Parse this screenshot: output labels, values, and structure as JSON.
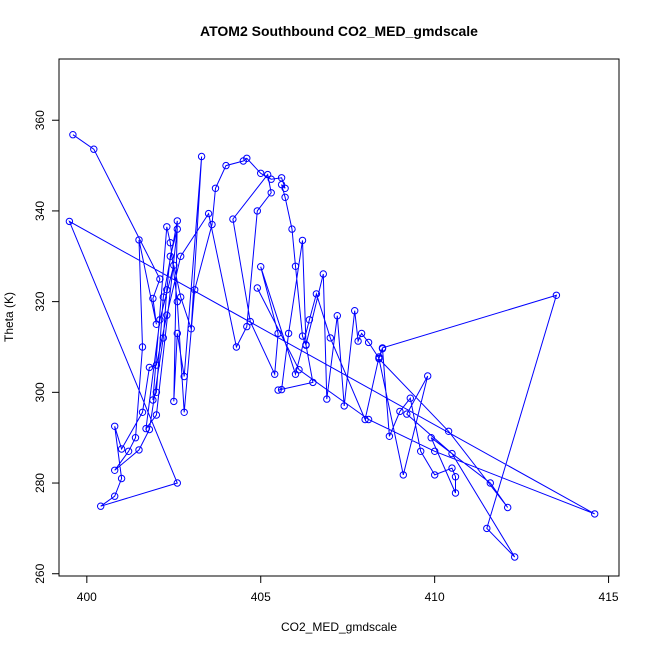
{
  "chart_data": {
    "type": "line",
    "title": "ATOM2 Southbound CO2_MED_gmdscale",
    "xlabel": "CO2_MED_gmdscale",
    "ylabel": "Theta (K)",
    "xlim": [
      399.2,
      415.3
    ],
    "ylim": [
      259.5,
      373.5
    ],
    "xticks": [
      400,
      405,
      410,
      415
    ],
    "yticks": [
      260,
      280,
      300,
      320,
      340,
      360
    ],
    "grid": false,
    "markers": "open-circle",
    "color": "#0000ff",
    "series": [
      {
        "points": [
          [
            399.6,
            356.8
          ],
          [
            400.2,
            353.6
          ],
          [
            402.1,
            325.0
          ],
          [
            401.9,
            320.7
          ],
          [
            402.0,
            315.0
          ],
          [
            401.5,
            333.6
          ],
          [
            401.6,
            310.0
          ],
          [
            401.4,
            290.0
          ],
          [
            401.2,
            287.0
          ],
          [
            400.8,
            282.8
          ],
          [
            401.5,
            287.3
          ],
          [
            401.8,
            291.8
          ],
          [
            402.2,
            312.0
          ],
          [
            402.3,
            322.6
          ],
          [
            402.4,
            330.0
          ],
          [
            402.6,
            336.0
          ],
          [
            402.0,
            295.0
          ],
          [
            401.7,
            292.0
          ],
          [
            402.1,
            316.0
          ],
          [
            402.5,
            328.0
          ],
          [
            402.7,
            321.0
          ],
          [
            403.0,
            314.0
          ],
          [
            403.3,
            352.0
          ],
          [
            402.8,
            303.5
          ],
          [
            402.6,
            313.0
          ],
          [
            402.5,
            298.0
          ],
          [
            402.6,
            337.8
          ],
          [
            402.2,
            321.0
          ],
          [
            402.0,
            300.0
          ],
          [
            401.9,
            298.3
          ],
          [
            402.3,
            336.5
          ],
          [
            402.4,
            333.0
          ],
          [
            402.6,
            320.0
          ],
          [
            402.8,
            295.6
          ],
          [
            403.1,
            322.6
          ],
          [
            403.6,
            337.0
          ],
          [
            403.7,
            345.0
          ],
          [
            404.0,
            350.0
          ],
          [
            404.5,
            351.0
          ],
          [
            404.6,
            351.6
          ],
          [
            405.0,
            348.3
          ],
          [
            405.3,
            347.0
          ],
          [
            405.6,
            347.3
          ],
          [
            405.7,
            345.0
          ],
          [
            405.6,
            345.8
          ],
          [
            405.7,
            343.0
          ],
          [
            405.9,
            336.0
          ],
          [
            406.0,
            327.8
          ],
          [
            406.2,
            312.4
          ],
          [
            406.3,
            310.4
          ],
          [
            406.5,
            302.2
          ],
          [
            405.5,
            300.5
          ],
          [
            405.6,
            300.6
          ],
          [
            405.8,
            313.0
          ],
          [
            406.2,
            333.5
          ],
          [
            406.3,
            310.5
          ],
          [
            406.8,
            326.1
          ],
          [
            406.9,
            298.5
          ],
          [
            407.2,
            316.9
          ],
          [
            407.4,
            297.0
          ],
          [
            407.7,
            318.0
          ],
          [
            407.8,
            311.3
          ],
          [
            407.9,
            313.0
          ],
          [
            408.1,
            311.0
          ],
          [
            408.4,
            307.5
          ],
          [
            408.5,
            309.6
          ],
          [
            408.7,
            290.3
          ],
          [
            409.0,
            295.8
          ],
          [
            409.3,
            298.7
          ],
          [
            409.6,
            287.0
          ],
          [
            410.0,
            281.8
          ],
          [
            410.5,
            283.3
          ],
          [
            410.6,
            281.4
          ],
          [
            410.6,
            277.8
          ],
          [
            409.9,
            290.0
          ],
          [
            411.6,
            280.0
          ],
          [
            412.1,
            274.6
          ],
          [
            410.4,
            291.4
          ],
          [
            408.4,
            307.4
          ],
          [
            409.1,
            281.8
          ],
          [
            409.8,
            303.6
          ],
          [
            409.2,
            295.2
          ],
          [
            410.5,
            286.5
          ],
          [
            412.3,
            263.7
          ],
          [
            411.5,
            270.0
          ],
          [
            413.5,
            321.4
          ],
          [
            408.5,
            309.8
          ],
          [
            408.4,
            307.8
          ],
          [
            408.0,
            294.0
          ],
          [
            407.0,
            312.0
          ],
          [
            406.6,
            321.7
          ],
          [
            406.4,
            316.0
          ],
          [
            406.0,
            304.0
          ],
          [
            405.0,
            327.7
          ],
          [
            405.5,
            313.0
          ],
          [
            405.4,
            304.0
          ],
          [
            404.7,
            315.6
          ],
          [
            404.2,
            338.2
          ],
          [
            405.2,
            348.0
          ],
          [
            405.3,
            344.0
          ],
          [
            404.9,
            340.0
          ],
          [
            404.6,
            314.5
          ],
          [
            404.3,
            310.0
          ],
          [
            403.5,
            339.4
          ],
          [
            402.7,
            330.0
          ],
          [
            402.3,
            317.0
          ],
          [
            402.0,
            306.0
          ],
          [
            401.8,
            305.5
          ],
          [
            401.6,
            295.6
          ],
          [
            401.0,
            287.5
          ],
          [
            400.8,
            292.5
          ],
          [
            401.0,
            281.0
          ],
          [
            400.8,
            277.1
          ],
          [
            400.4,
            274.9
          ],
          [
            402.6,
            280.0
          ],
          [
            399.5,
            337.7
          ],
          [
            414.6,
            273.2
          ],
          [
            410.0,
            287.0
          ],
          [
            408.1,
            294.0
          ],
          [
            406.1,
            305.0
          ],
          [
            404.9,
            323.0
          ]
        ]
      }
    ]
  }
}
